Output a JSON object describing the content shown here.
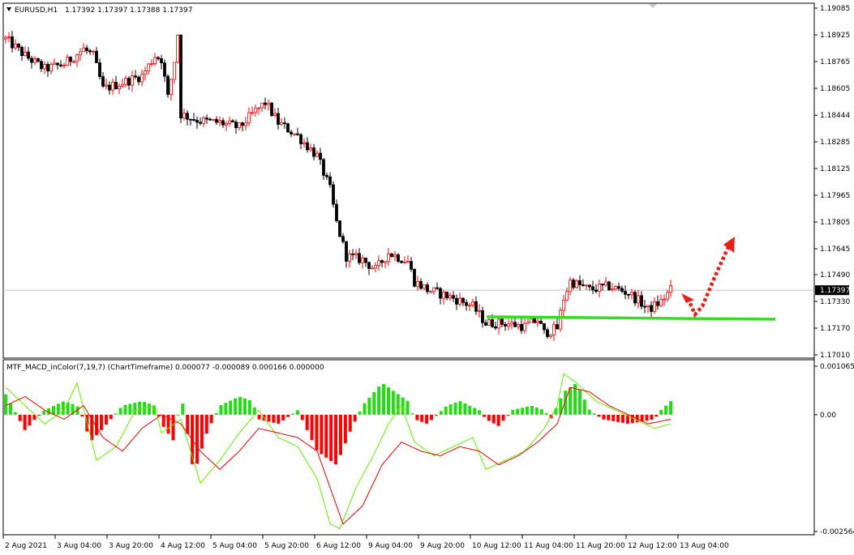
{
  "header": {
    "symbol_label": "EURUSD,H1",
    "ohlc": "1.17392 1.17397 1.17388 1.17397"
  },
  "indicator": {
    "title": "MTF_MACD_inColor(7,19,7) (ChartTimeframe) 0.000077 -0.000089 0.000166 0.000000"
  },
  "colors": {
    "bull": "#ff0000",
    "bear": "#000000",
    "support_line": "#33dd22",
    "hist_pos": "#22dd11",
    "hist_neg": "#ff0000",
    "macd_line": "#66ee00",
    "signal_line": "#ee0000",
    "arrow": "#e8201a",
    "price_line": "#c0c0c0"
  },
  "chart_data": [
    {
      "type": "candlestick",
      "symbol": "EURUSD",
      "timeframe": "H1",
      "ylim": [
        1.1701,
        1.19085
      ],
      "y_ticks": [
        "1.19085",
        "1.18925",
        "1.18765",
        "1.18605",
        "1.18444",
        "1.18285",
        "1.18125",
        "1.17965",
        "1.17805",
        "1.17645",
        "1.17490",
        "1.17330",
        "1.17170",
        "1.17010"
      ],
      "current_price": "1.17397",
      "x_tick_labels": [
        "2 Aug 2021",
        "3 Aug 04:00",
        "3 Aug 20:00",
        "4 Aug 12:00",
        "5 Aug 04:00",
        "5 Aug 20:00",
        "6 Aug 12:00",
        "9 Aug 04:00",
        "9 Aug 20:00",
        "10 Aug 12:00",
        "11 Aug 04:00",
        "11 Aug 20:00",
        "12 Aug 12:00",
        "13 Aug 04:00"
      ],
      "close_path": [
        [
          0,
          1.189
        ],
        [
          6,
          1.188
        ],
        [
          12,
          1.1872
        ],
        [
          18,
          1.1875
        ],
        [
          24,
          1.1884
        ],
        [
          27,
          1.188
        ],
        [
          30,
          1.186
        ],
        [
          36,
          1.1864
        ],
        [
          42,
          1.1868
        ],
        [
          46,
          1.188
        ],
        [
          48,
          1.1878
        ],
        [
          50,
          1.1855
        ],
        [
          52,
          1.1877
        ],
        [
          53,
          1.1893
        ],
        [
          54,
          1.1845
        ],
        [
          60,
          1.1841
        ],
        [
          66,
          1.184
        ],
        [
          72,
          1.1837
        ],
        [
          76,
          1.1845
        ],
        [
          80,
          1.1852
        ],
        [
          84,
          1.184
        ],
        [
          90,
          1.1832
        ],
        [
          96,
          1.182
        ],
        [
          100,
          1.18
        ],
        [
          102,
          1.178
        ],
        [
          105,
          1.176
        ],
        [
          110,
          1.1758
        ],
        [
          114,
          1.1752
        ],
        [
          118,
          1.1762
        ],
        [
          124,
          1.1757
        ],
        [
          126,
          1.1745
        ],
        [
          130,
          1.174
        ],
        [
          138,
          1.1735
        ],
        [
          144,
          1.173
        ],
        [
          148,
          1.172
        ],
        [
          154,
          1.172
        ],
        [
          160,
          1.1718
        ],
        [
          164,
          1.1722
        ],
        [
          166,
          1.1714
        ],
        [
          170,
          1.1717
        ],
        [
          172,
          1.1735
        ],
        [
          174,
          1.1745
        ],
        [
          180,
          1.174
        ],
        [
          186,
          1.1742
        ],
        [
          192,
          1.1738
        ],
        [
          196,
          1.1732
        ],
        [
          198,
          1.1728
        ],
        [
          202,
          1.1733
        ],
        [
          205,
          1.174
        ]
      ]
    },
    {
      "type": "histogram_with_lines",
      "ylim": [
        -0.002564,
        0.001065
      ],
      "y_ticks": [
        "0.001065",
        "0.00",
        "-0.002564"
      ],
      "histogram": [
        [
          0,
          0.00045
        ],
        [
          6,
          -0.00035
        ],
        [
          9,
          -0.0001
        ],
        [
          12,
          0.0001
        ],
        [
          18,
          0.0003
        ],
        [
          22,
          0.0002
        ],
        [
          24,
          -0.0001
        ],
        [
          26,
          -0.0006
        ],
        [
          30,
          -0.0003
        ],
        [
          36,
          0.0002
        ],
        [
          42,
          0.0003
        ],
        [
          46,
          0.0002
        ],
        [
          48,
          -0.0002
        ],
        [
          52,
          -0.0006
        ],
        [
          54,
          0.0005
        ],
        [
          58,
          -0.0013
        ],
        [
          62,
          -0.0004
        ],
        [
          66,
          0.0002
        ],
        [
          72,
          0.0004
        ],
        [
          76,
          0.0003
        ],
        [
          78,
          -0.0001
        ],
        [
          84,
          -0.0002
        ],
        [
          90,
          0.0001
        ],
        [
          96,
          -0.0008
        ],
        [
          102,
          -0.0011
        ],
        [
          106,
          -0.0004
        ],
        [
          110,
          0.0002
        ],
        [
          116,
          0.0007
        ],
        [
          120,
          0.0005
        ],
        [
          124,
          0.0003
        ],
        [
          126,
          -0.0001
        ],
        [
          130,
          -0.0002
        ],
        [
          136,
          0.0002
        ],
        [
          140,
          0.0003
        ],
        [
          146,
          0.0001
        ],
        [
          148,
          -0.0001
        ],
        [
          152,
          -0.00025
        ],
        [
          156,
          0.0001
        ],
        [
          162,
          0.0002
        ],
        [
          166,
          0.0001
        ],
        [
          168,
          -0.0001
        ],
        [
          172,
          0.0005
        ],
        [
          176,
          0.0007
        ],
        [
          180,
          0.0001
        ],
        [
          184,
          -0.0001
        ],
        [
          188,
          -0.00015
        ],
        [
          192,
          -0.0002
        ],
        [
          196,
          -0.00015
        ],
        [
          200,
          -0.0001
        ],
        [
          202,
          0.0001
        ],
        [
          205,
          0.0003
        ]
      ],
      "macd_path": [
        [
          0,
          0.0006
        ],
        [
          6,
          0.0002
        ],
        [
          12,
          -0.0002
        ],
        [
          18,
          0.0001
        ],
        [
          22,
          0.0007
        ],
        [
          28,
          -0.001
        ],
        [
          34,
          -0.0007
        ],
        [
          40,
          0.0001
        ],
        [
          46,
          0.0002
        ],
        [
          48,
          -0.0004
        ],
        [
          54,
          -0.0001
        ],
        [
          60,
          -0.0015
        ],
        [
          66,
          -0.001
        ],
        [
          72,
          -0.0004
        ],
        [
          78,
          0.0001
        ],
        [
          84,
          -0.0005
        ],
        [
          90,
          -0.0007
        ],
        [
          96,
          -0.0014
        ],
        [
          100,
          -0.0024
        ],
        [
          103,
          -0.0025
        ],
        [
          108,
          -0.0016
        ],
        [
          114,
          -0.0008
        ],
        [
          118,
          -0.0002
        ],
        [
          122,
          0.0002
        ],
        [
          126,
          -0.0006
        ],
        [
          132,
          -0.0009
        ],
        [
          138,
          -0.0007
        ],
        [
          144,
          -0.0005
        ],
        [
          148,
          -0.0012
        ],
        [
          154,
          -0.001
        ],
        [
          160,
          -0.0008
        ],
        [
          166,
          -0.0003
        ],
        [
          170,
          0.0002
        ],
        [
          172,
          0.0009
        ],
        [
          176,
          0.0007
        ],
        [
          182,
          0.0003
        ],
        [
          188,
          0.0001
        ],
        [
          194,
          -0.0001
        ],
        [
          200,
          -0.0003
        ],
        [
          205,
          -0.0002
        ]
      ],
      "signal_path": [
        [
          0,
          0.0002
        ],
        [
          6,
          0.0004
        ],
        [
          12,
          0.0001
        ],
        [
          18,
          -0.0001
        ],
        [
          24,
          0.0002
        ],
        [
          30,
          -0.0005
        ],
        [
          36,
          -0.0008
        ],
        [
          42,
          -0.0003
        ],
        [
          48,
          0.0
        ],
        [
          54,
          -0.0002
        ],
        [
          60,
          -0.0008
        ],
        [
          66,
          -0.0012
        ],
        [
          72,
          -0.0008
        ],
        [
          78,
          -0.0003
        ],
        [
          84,
          -0.0004
        ],
        [
          90,
          -0.0005
        ],
        [
          96,
          -0.0008
        ],
        [
          100,
          -0.0016
        ],
        [
          104,
          -0.0024
        ],
        [
          110,
          -0.002
        ],
        [
          116,
          -0.0011
        ],
        [
          122,
          -0.0006
        ],
        [
          128,
          -0.0008
        ],
        [
          134,
          -0.0009
        ],
        [
          140,
          -0.0007
        ],
        [
          146,
          -0.0008
        ],
        [
          152,
          -0.0011
        ],
        [
          158,
          -0.0009
        ],
        [
          164,
          -0.0006
        ],
        [
          170,
          -0.0002
        ],
        [
          174,
          0.0006
        ],
        [
          180,
          0.0005
        ],
        [
          186,
          0.0002
        ],
        [
          192,
          0.0
        ],
        [
          198,
          -0.0002
        ],
        [
          205,
          -0.0001
        ]
      ]
    }
  ]
}
